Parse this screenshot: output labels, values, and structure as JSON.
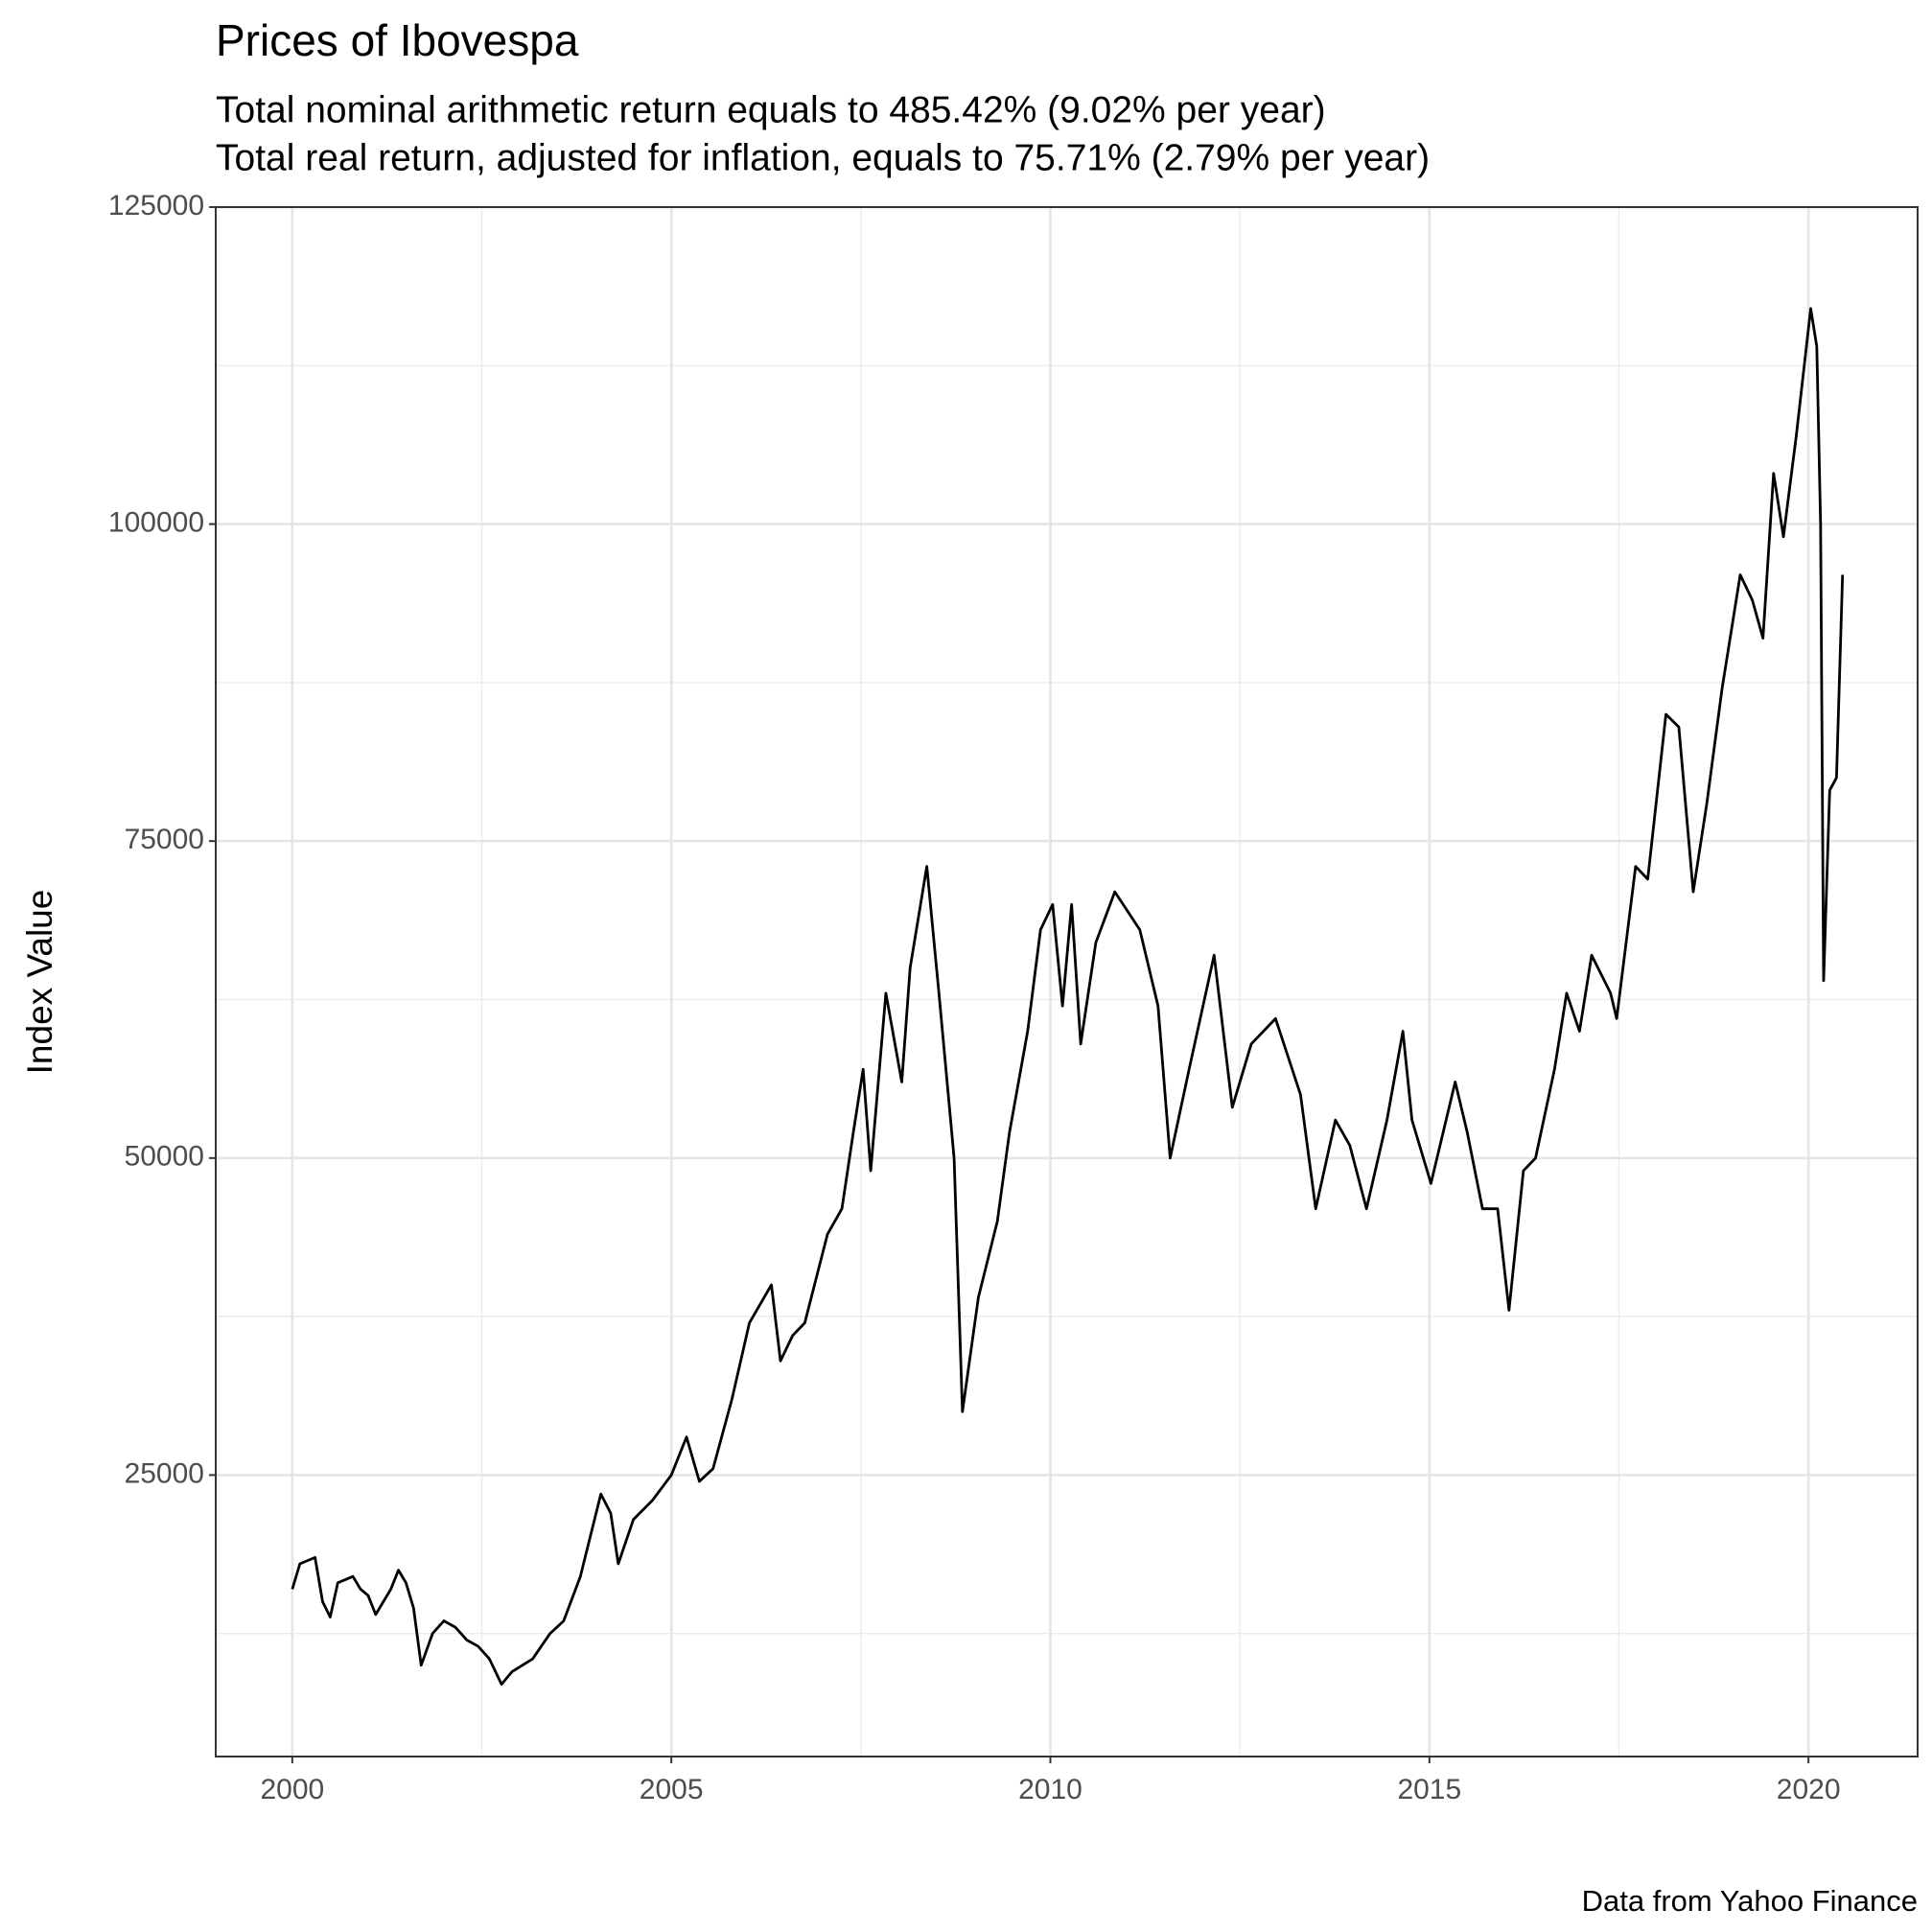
{
  "chart_data": {
    "type": "line",
    "title": "Prices of Ibovespa",
    "subtitle": [
      "Total nominal arithmetic return equals to 485.42% (9.02% per year)",
      "Total real return, adjusted for inflation, equals to 75.71% (2.79% per year)"
    ],
    "y_label": "Index Value",
    "caption": "Data from Yahoo Finance",
    "x": [
      2000.0,
      2000.1,
      2000.3,
      2000.4,
      2000.5,
      2000.6,
      2000.8,
      2000.9,
      2001.0,
      2001.1,
      2001.3,
      2001.4,
      2001.5,
      2001.6,
      2001.7,
      2001.85,
      2002.0,
      2002.15,
      2002.3,
      2002.45,
      2002.6,
      2002.76,
      2002.9,
      2003.17,
      2003.4,
      2003.58,
      2003.8,
      2004.07,
      2004.2,
      2004.3,
      2004.5,
      2004.75,
      2005.0,
      2005.2,
      2005.37,
      2005.55,
      2005.8,
      2006.03,
      2006.32,
      2006.44,
      2006.6,
      2006.76,
      2007.06,
      2007.25,
      2007.4,
      2007.53,
      2007.63,
      2007.83,
      2008.04,
      2008.15,
      2008.37,
      2008.53,
      2008.73,
      2008.84,
      2009.05,
      2009.3,
      2009.46,
      2009.7,
      2009.87,
      2010.03,
      2010.16,
      2010.28,
      2010.4,
      2010.6,
      2010.85,
      2011.18,
      2011.42,
      2011.58,
      2011.83,
      2012.16,
      2012.4,
      2012.65,
      2012.97,
      2013.3,
      2013.5,
      2013.76,
      2013.95,
      2014.17,
      2014.44,
      2014.65,
      2014.77,
      2015.02,
      2015.34,
      2015.5,
      2015.7,
      2015.9,
      2016.05,
      2016.24,
      2016.4,
      2016.65,
      2016.81,
      2016.98,
      2017.14,
      2017.39,
      2017.47,
      2017.72,
      2017.88,
      2018.12,
      2018.29,
      2018.48,
      2018.66,
      2018.86,
      2019.1,
      2019.26,
      2019.4,
      2019.54,
      2019.67,
      2019.84,
      2020.03,
      2020.11,
      2020.16,
      2020.2,
      2020.28,
      2020.37,
      2020.45
    ],
    "series": [
      {
        "name": "Ibovespa",
        "color": "#000000",
        "values": [
          16000,
          18000,
          18500,
          15000,
          13800,
          16500,
          17000,
          16000,
          15500,
          14000,
          16000,
          17500,
          16500,
          14500,
          10000,
          12500,
          13500,
          13000,
          12000,
          11500,
          10500,
          8500,
          9500,
          10500,
          12500,
          13500,
          17000,
          23500,
          22000,
          18000,
          21500,
          23000,
          25000,
          28000,
          24500,
          25500,
          31000,
          37000,
          40000,
          34000,
          36000,
          37000,
          44000,
          46000,
          52000,
          57000,
          49000,
          63000,
          56000,
          65000,
          73000,
          63000,
          50000,
          30000,
          39000,
          45000,
          52000,
          60000,
          68000,
          70000,
          62000,
          70000,
          59000,
          67000,
          71000,
          68000,
          62000,
          50000,
          57000,
          66000,
          54000,
          59000,
          61000,
          55000,
          46000,
          53000,
          51000,
          46000,
          53000,
          60000,
          53000,
          48000,
          56000,
          52000,
          46000,
          46000,
          38000,
          49000,
          50000,
          57000,
          63000,
          60000,
          66000,
          63000,
          61000,
          73000,
          72000,
          85000,
          84000,
          71000,
          78000,
          87000,
          96000,
          94000,
          91000,
          104000,
          99000,
          107000,
          117000,
          114000,
          100000,
          64000,
          79000,
          80000,
          96000
        ]
      }
    ],
    "xlim": [
      1998.99,
      2021.44
    ],
    "ylim": [
      2800,
      125000
    ],
    "xticks": [
      2000,
      2005,
      2010,
      2015,
      2020
    ],
    "yticks": [
      25000,
      50000,
      75000,
      100000,
      125000
    ],
    "grid": true
  }
}
